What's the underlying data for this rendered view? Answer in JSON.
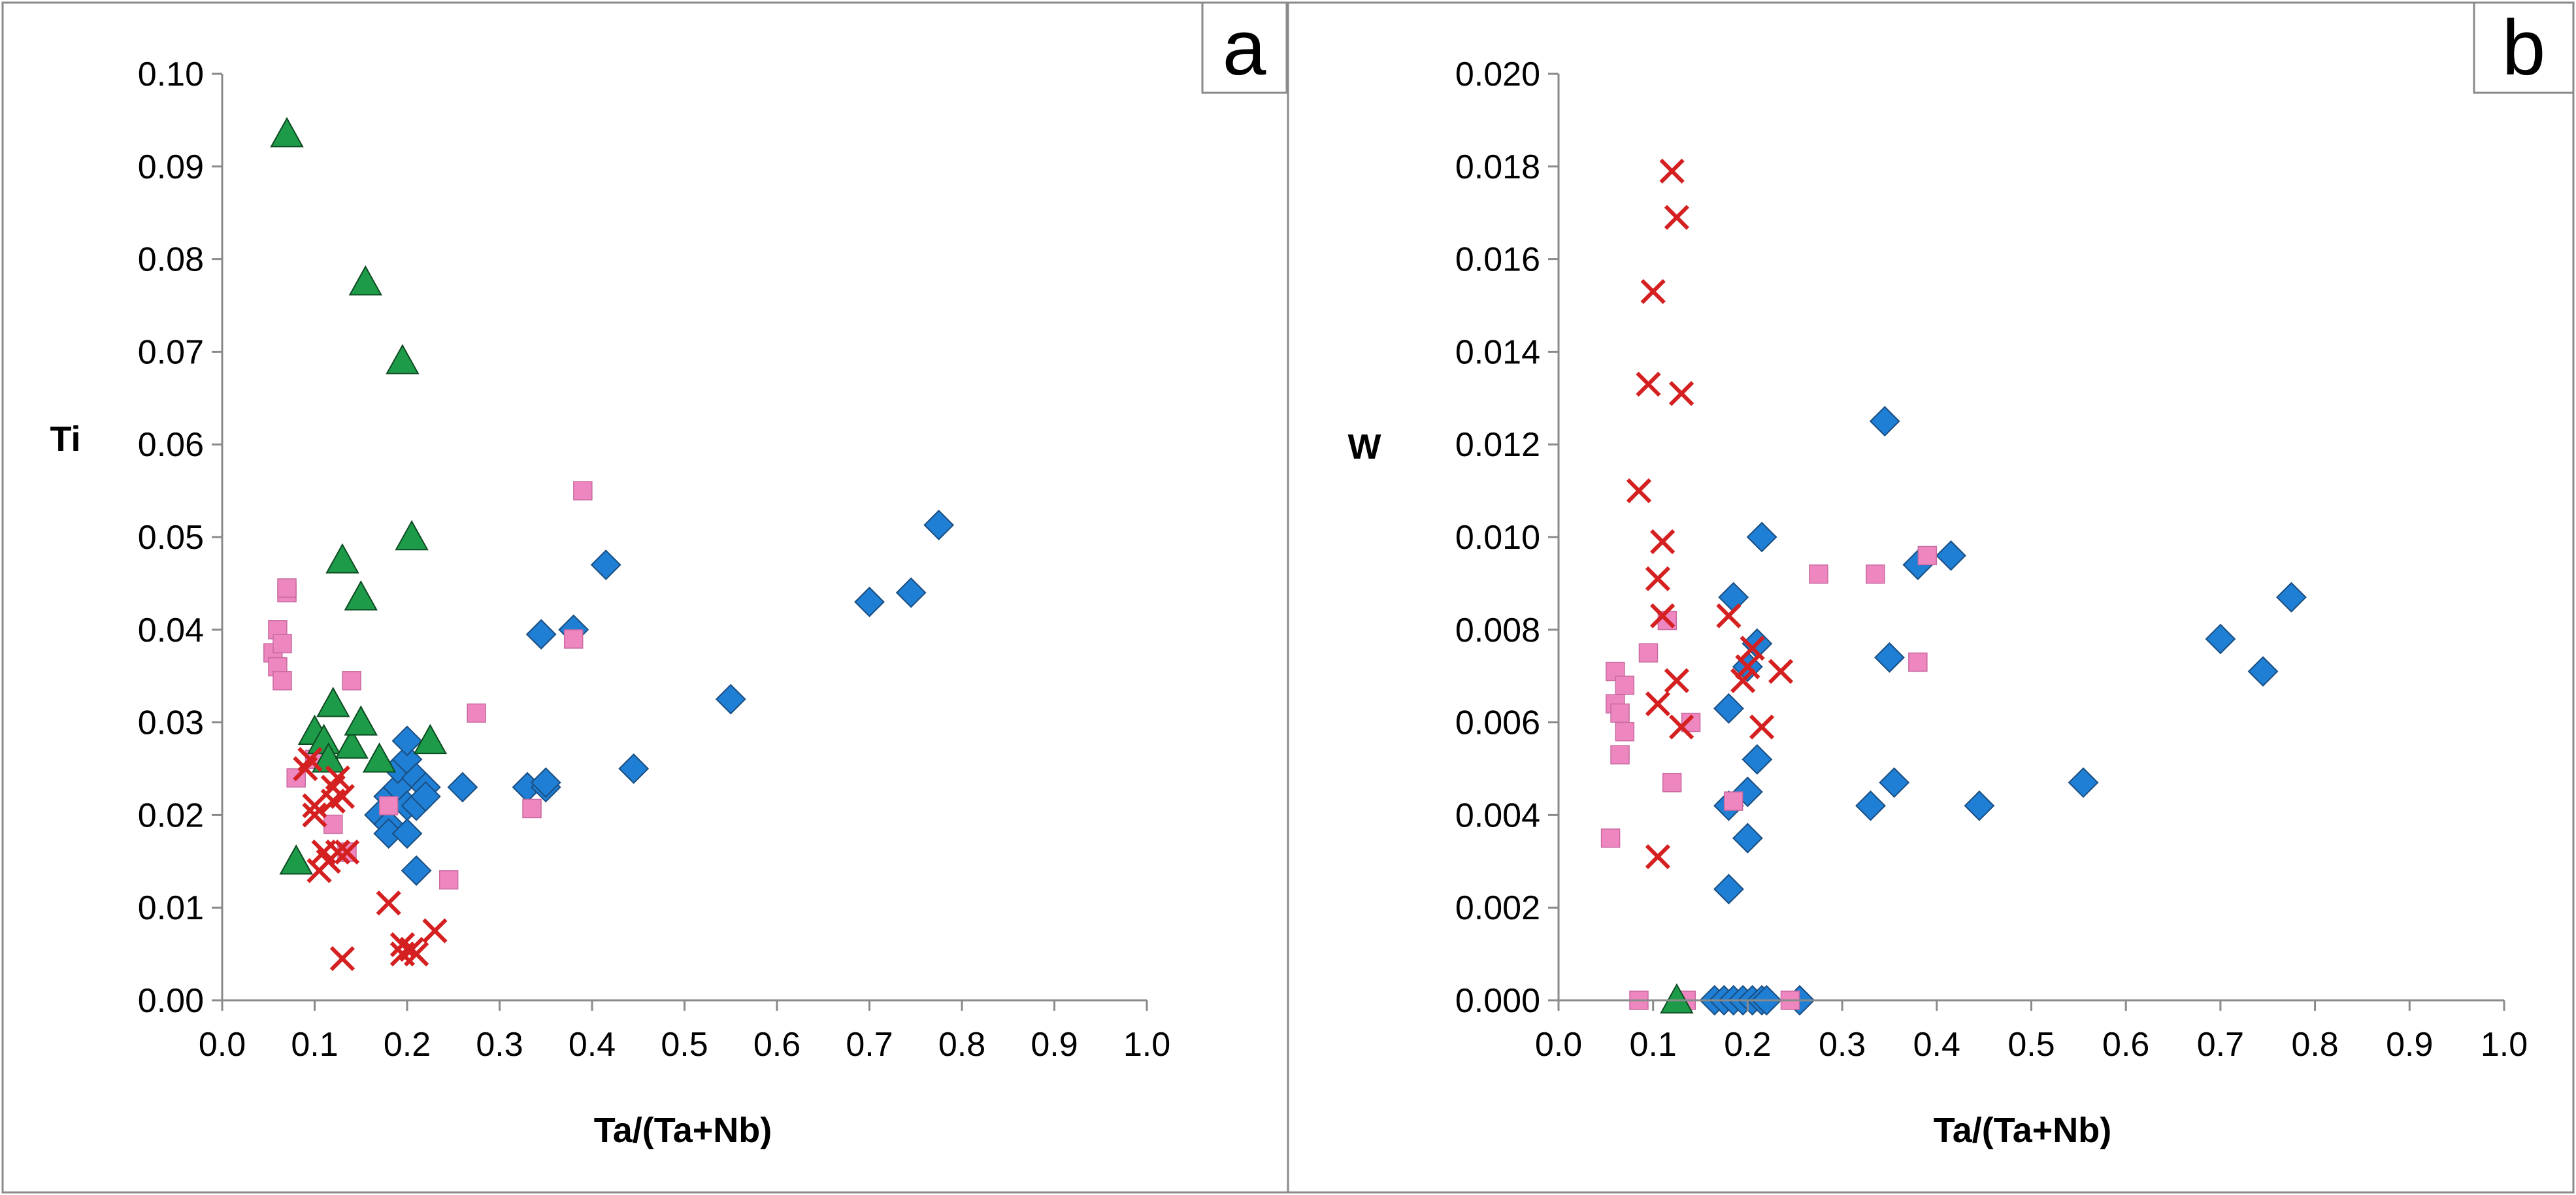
{
  "chart_data": [
    {
      "type": "scatter",
      "panel_label": "a",
      "xlabel": "Ta/(Ta+Nb)",
      "ylabel": "Ti",
      "xlim": [
        0,
        1
      ],
      "ylim": [
        0,
        0.1
      ],
      "xticks": [
        "0.0",
        "0.1",
        "0.2",
        "0.3",
        "0.4",
        "0.5",
        "0.6",
        "0.7",
        "0.8",
        "0.9",
        "1.0"
      ],
      "yticks": [
        "0.00",
        "0.01",
        "0.02",
        "0.03",
        "0.04",
        "0.05",
        "0.06",
        "0.07",
        "0.08",
        "0.09",
        "0.10"
      ],
      "series": [
        {
          "marker": "diamond",
          "color": "#1F7FD4",
          "points": [
            [
              0.17,
              0.02
            ],
            [
              0.18,
              0.019
            ],
            [
              0.18,
              0.022
            ],
            [
              0.18,
              0.018
            ],
            [
              0.19,
              0.023
            ],
            [
              0.19,
              0.025
            ],
            [
              0.2,
              0.026
            ],
            [
              0.2,
              0.028
            ],
            [
              0.2,
              0.021
            ],
            [
              0.2,
              0.018
            ],
            [
              0.21,
              0.024
            ],
            [
              0.21,
              0.014
            ],
            [
              0.21,
              0.021
            ],
            [
              0.22,
              0.023
            ],
            [
              0.22,
              0.022
            ],
            [
              0.26,
              0.023
            ],
            [
              0.33,
              0.023
            ],
            [
              0.35,
              0.023
            ],
            [
              0.35,
              0.0235
            ],
            [
              0.345,
              0.0395
            ],
            [
              0.38,
              0.04
            ],
            [
              0.415,
              0.047
            ],
            [
              0.445,
              0.025
            ],
            [
              0.55,
              0.0325
            ],
            [
              0.7,
              0.043
            ],
            [
              0.745,
              0.044
            ],
            [
              0.775,
              0.0513
            ]
          ]
        },
        {
          "marker": "square",
          "color": "#EE86C0",
          "points": [
            [
              0.055,
              0.0375
            ],
            [
              0.06,
              0.04
            ],
            [
              0.06,
              0.036
            ],
            [
              0.065,
              0.0385
            ],
            [
              0.065,
              0.0345
            ],
            [
              0.07,
              0.044
            ],
            [
              0.07,
              0.0445
            ],
            [
              0.08,
              0.024
            ],
            [
              0.1,
              0.026
            ],
            [
              0.12,
              0.019
            ],
            [
              0.135,
              0.016
            ],
            [
              0.14,
              0.0345
            ],
            [
              0.18,
              0.021
            ],
            [
              0.245,
              0.013
            ],
            [
              0.275,
              0.031
            ],
            [
              0.335,
              0.0207
            ],
            [
              0.38,
              0.039
            ],
            [
              0.39,
              0.055
            ]
          ]
        },
        {
          "marker": "triangle",
          "color": "#1E9B48",
          "points": [
            [
              0.07,
              0.0935
            ],
            [
              0.08,
              0.015
            ],
            [
              0.1,
              0.029
            ],
            [
              0.11,
              0.028
            ],
            [
              0.115,
              0.026
            ],
            [
              0.12,
              0.032
            ],
            [
              0.13,
              0.0475
            ],
            [
              0.14,
              0.0275
            ],
            [
              0.15,
              0.03
            ],
            [
              0.15,
              0.0435
            ],
            [
              0.155,
              0.0775
            ],
            [
              0.17,
              0.026
            ],
            [
              0.195,
              0.069
            ],
            [
              0.205,
              0.05
            ],
            [
              0.225,
              0.028
            ]
          ]
        },
        {
          "marker": "x",
          "color": "#D42020",
          "points": [
            [
              0.09,
              0.025
            ],
            [
              0.095,
              0.026
            ],
            [
              0.1,
              0.021
            ],
            [
              0.1,
              0.02
            ],
            [
              0.105,
              0.014
            ],
            [
              0.11,
              0.016
            ],
            [
              0.115,
              0.015
            ],
            [
              0.12,
              0.023
            ],
            [
              0.12,
              0.0215
            ],
            [
              0.125,
              0.024
            ],
            [
              0.125,
              0.016
            ],
            [
              0.13,
              0.022
            ],
            [
              0.13,
              0.0045
            ],
            [
              0.135,
              0.016
            ],
            [
              0.18,
              0.0105
            ],
            [
              0.195,
              0.006
            ],
            [
              0.195,
              0.005
            ],
            [
              0.205,
              0.0055
            ],
            [
              0.21,
              0.005
            ],
            [
              0.23,
              0.0075
            ]
          ]
        }
      ]
    },
    {
      "type": "scatter",
      "panel_label": "b",
      "xlabel": "Ta/(Ta+Nb)",
      "ylabel": "W",
      "xlim": [
        0,
        1
      ],
      "ylim": [
        0,
        0.02
      ],
      "xticks": [
        "0.0",
        "0.1",
        "0.2",
        "0.3",
        "0.4",
        "0.5",
        "0.6",
        "0.7",
        "0.8",
        "0.9",
        "1.0"
      ],
      "yticks": [
        "0.000",
        "0.002",
        "0.004",
        "0.006",
        "0.008",
        "0.010",
        "0.012",
        "0.014",
        "0.016",
        "0.018",
        "0.020"
      ],
      "series": [
        {
          "marker": "diamond",
          "color": "#1F7FD4",
          "points": [
            [
              0.165,
              0
            ],
            [
              0.175,
              0
            ],
            [
              0.185,
              0
            ],
            [
              0.195,
              0
            ],
            [
              0.205,
              0
            ],
            [
              0.215,
              0
            ],
            [
              0.22,
              0
            ],
            [
              0.255,
              0
            ],
            [
              0.18,
              0.0024
            ],
            [
              0.18,
              0.0042
            ],
            [
              0.18,
              0.0063
            ],
            [
              0.185,
              0.0087
            ],
            [
              0.2,
              0.0035
            ],
            [
              0.2,
              0.0045
            ],
            [
              0.2,
              0.0072
            ],
            [
              0.21,
              0.0077
            ],
            [
              0.21,
              0.0052
            ],
            [
              0.215,
              0.01
            ],
            [
              0.33,
              0.0042
            ],
            [
              0.345,
              0.0125
            ],
            [
              0.35,
              0.0074
            ],
            [
              0.355,
              0.0047
            ],
            [
              0.38,
              0.0094
            ],
            [
              0.415,
              0.0096
            ],
            [
              0.445,
              0.0042
            ],
            [
              0.555,
              0.0047
            ],
            [
              0.7,
              0.0078
            ],
            [
              0.745,
              0.0071
            ],
            [
              0.775,
              0.0087
            ]
          ]
        },
        {
          "marker": "square",
          "color": "#EE86C0",
          "points": [
            [
              0.055,
              0.0035
            ],
            [
              0.06,
              0.0071
            ],
            [
              0.06,
              0.0064
            ],
            [
              0.065,
              0.0062
            ],
            [
              0.065,
              0.0053
            ],
            [
              0.07,
              0.0058
            ],
            [
              0.07,
              0.0068
            ],
            [
              0.085,
              0
            ],
            [
              0.095,
              0.0075
            ],
            [
              0.115,
              0.0082
            ],
            [
              0.12,
              0.0047
            ],
            [
              0.135,
              0
            ],
            [
              0.14,
              0.006
            ],
            [
              0.185,
              0.0043
            ],
            [
              0.245,
              0
            ],
            [
              0.275,
              0.0092
            ],
            [
              0.335,
              0.0092
            ],
            [
              0.38,
              0.0073
            ],
            [
              0.39,
              0.0096
            ]
          ]
        },
        {
          "marker": "triangle",
          "color": "#1E9B48",
          "points": [
            [
              0.125,
              0
            ]
          ]
        },
        {
          "marker": "x",
          "color": "#D42020",
          "points": [
            [
              0.085,
              0.011
            ],
            [
              0.095,
              0.0133
            ],
            [
              0.1,
              0.0153
            ],
            [
              0.105,
              0.0031
            ],
            [
              0.105,
              0.0064
            ],
            [
              0.105,
              0.0091
            ],
            [
              0.11,
              0.0099
            ],
            [
              0.11,
              0.0083
            ],
            [
              0.12,
              0.0179
            ],
            [
              0.125,
              0.0169
            ],
            [
              0.125,
              0.0069
            ],
            [
              0.13,
              0.0131
            ],
            [
              0.13,
              0.0059
            ],
            [
              0.18,
              0.0083
            ],
            [
              0.195,
              0.0069
            ],
            [
              0.2,
              0.0072
            ],
            [
              0.205,
              0.0076
            ],
            [
              0.215,
              0.0059
            ],
            [
              0.235,
              0.0071
            ]
          ]
        }
      ]
    }
  ]
}
